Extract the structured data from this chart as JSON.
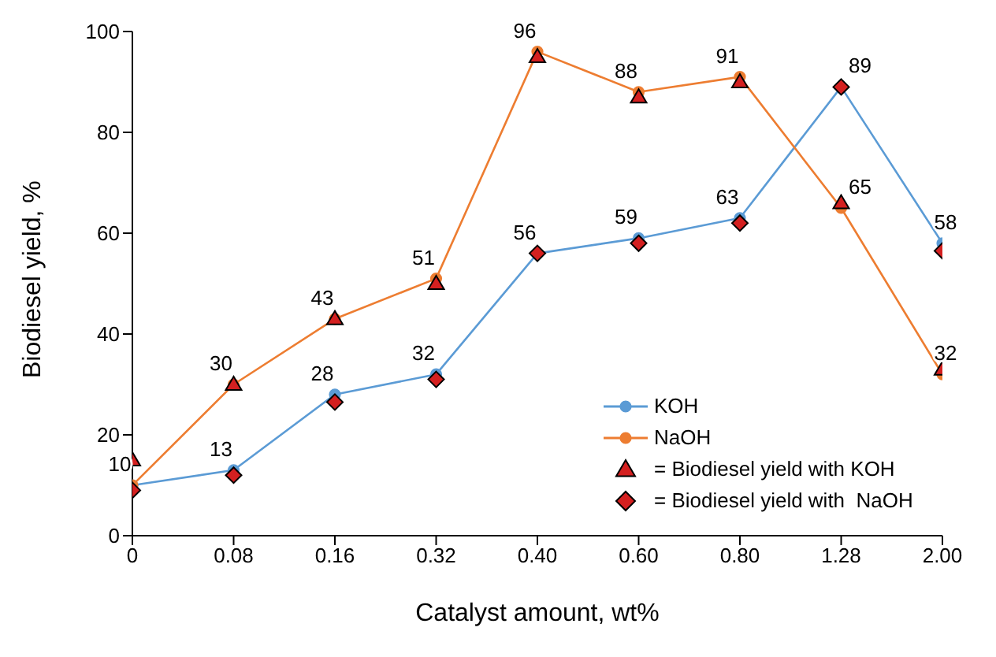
{
  "chart_data": {
    "type": "line",
    "xlabel": "Catalyst amount, wt%",
    "ylabel": "Biodiesel yield, %",
    "categories": [
      "0",
      "0.08",
      "0.16",
      "0.32",
      "0.40",
      "0.60",
      "0.80",
      "1.28",
      "2.00"
    ],
    "ylim": [
      0,
      100
    ],
    "yticks": [
      0,
      20,
      40,
      60,
      80,
      100
    ],
    "grid": false,
    "legend": "right",
    "series": [
      {
        "name": "KOH",
        "color": "#5b9bd5",
        "marker": "circle",
        "values": [
          10,
          13,
          28,
          32,
          56,
          59,
          63,
          89,
          58
        ],
        "value_labels": [
          "10",
          "13",
          "28",
          "32",
          "56",
          "59",
          "63",
          "89",
          "58"
        ]
      },
      {
        "name": "NaOH",
        "color": "#ed7d31",
        "marker": "circle",
        "values": [
          10,
          30,
          43,
          51,
          96,
          88,
          91,
          65,
          32
        ],
        "value_labels": [
          null,
          "30",
          "43",
          "51",
          "96",
          "88",
          "91",
          "65",
          "32"
        ]
      },
      {
        "name": "= Biodiesel yield with KOH",
        "type": "scatter",
        "color": "#d42020",
        "marker": "triangle",
        "values": [
          15,
          30,
          43,
          50,
          95,
          87,
          90,
          66,
          33
        ]
      },
      {
        "name": "= Biodiesel yield with  NaOH",
        "type": "scatter",
        "color": "#d42020",
        "marker": "diamond",
        "values": [
          9,
          12,
          26.5,
          31,
          56,
          58,
          62,
          89,
          56.5
        ]
      }
    ]
  }
}
